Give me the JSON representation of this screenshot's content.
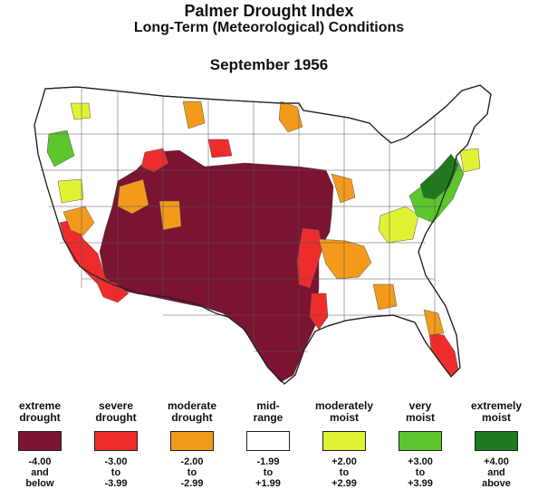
{
  "header": {
    "title": "Palmer Drought Index",
    "subtitle": "Long-Term (Meteorological) Conditions",
    "date": "September 1956"
  },
  "legend": [
    {
      "label": "extreme\ndrought",
      "range": "-4.00\nand\nbelow",
      "color": "#7a1430"
    },
    {
      "label": "severe\ndrought",
      "range": "-3.00\nto\n-3.99",
      "color": "#ee2c2c"
    },
    {
      "label": "moderate\ndrought",
      "range": "-2.00\nto\n-2.99",
      "color": "#f39a1c"
    },
    {
      "label": "mid-\nrange",
      "range": "-1.99\nto\n+1.99",
      "color": "#ffffff"
    },
    {
      "label": "moderately\nmoist",
      "range": "+2.00\nto\n+2.99",
      "color": "#e0f234"
    },
    {
      "label": "very\nmoist",
      "range": "+3.00\nto\n+3.99",
      "color": "#5cc62c"
    },
    {
      "label": "extremely\nmoist",
      "range": "+4.00\nand\nabove",
      "color": "#1f7a1f"
    }
  ],
  "map": {
    "outline_color": "#222222",
    "division_color": "#555555"
  }
}
